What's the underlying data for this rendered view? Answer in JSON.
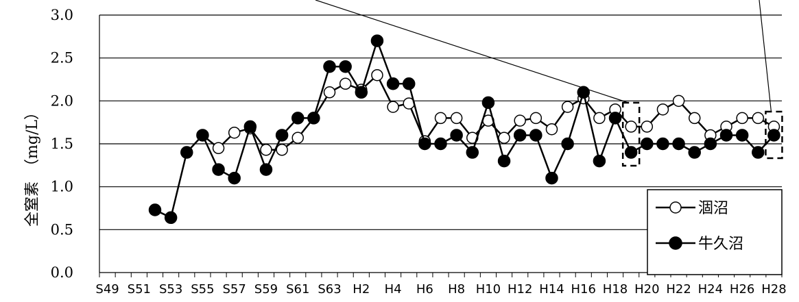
{
  "chart_data": {
    "type": "line",
    "title": "",
    "xlabel": "",
    "ylabel": "全窒素　（mg/L）",
    "ylim": [
      0,
      3.0
    ],
    "yticks": [
      "0.0",
      "0.5",
      "1.0",
      "1.5",
      "2.0",
      "2.5",
      "3.0"
    ],
    "grid": true,
    "legend_position": "bottom-right",
    "x": [
      "S49",
      "S50",
      "S51",
      "S52",
      "S53",
      "S54",
      "S55",
      "S56",
      "S57",
      "S58",
      "S59",
      "S60",
      "S61",
      "S62",
      "S63",
      "H1",
      "H2",
      "H3",
      "H4",
      "H5",
      "H6",
      "H7",
      "H8",
      "H9",
      "H10",
      "H11",
      "H12",
      "H13",
      "H14",
      "H15",
      "H16",
      "H17",
      "H18",
      "H19",
      "H20",
      "H21",
      "H22",
      "H23",
      "H24",
      "H25",
      "H26",
      "H27",
      "H28"
    ],
    "xtick_labels": [
      "S49",
      "S51",
      "S53",
      "S55",
      "S57",
      "S59",
      "S61",
      "S63",
      "H2",
      "H4",
      "H6",
      "H8",
      "H10",
      "H12",
      "H14",
      "H16",
      "H18",
      "H20",
      "H22",
      "H24",
      "H26",
      "H28"
    ],
    "series": [
      {
        "name": "涸沼",
        "marker": "open-circle",
        "color": "#000000",
        "values": [
          null,
          null,
          null,
          null,
          null,
          null,
          1.6,
          1.45,
          1.63,
          1.68,
          1.43,
          1.43,
          1.57,
          1.8,
          2.1,
          2.2,
          2.13,
          2.3,
          1.93,
          1.97,
          1.53,
          1.8,
          1.8,
          1.57,
          1.77,
          1.57,
          1.77,
          1.8,
          1.67,
          1.93,
          2.03,
          1.8,
          1.9,
          1.7,
          1.7,
          1.9,
          2.0,
          1.8,
          1.6,
          1.7,
          1.8,
          1.8,
          1.7
        ]
      },
      {
        "name": "牛久沼",
        "marker": "filled-circle",
        "color": "#000000",
        "values": [
          null,
          null,
          null,
          0.73,
          0.64,
          1.4,
          1.6,
          1.2,
          1.1,
          1.7,
          1.2,
          1.6,
          1.8,
          1.8,
          2.4,
          2.4,
          2.1,
          2.7,
          2.2,
          2.2,
          1.5,
          1.5,
          1.6,
          1.4,
          1.98,
          1.3,
          1.6,
          1.6,
          1.1,
          1.5,
          2.1,
          1.3,
          1.8,
          1.4,
          1.5,
          1.5,
          1.5,
          1.4,
          1.5,
          1.6,
          1.6,
          1.4,
          1.6
        ]
      }
    ],
    "highlight_years": [
      "H19",
      "H28"
    ]
  }
}
